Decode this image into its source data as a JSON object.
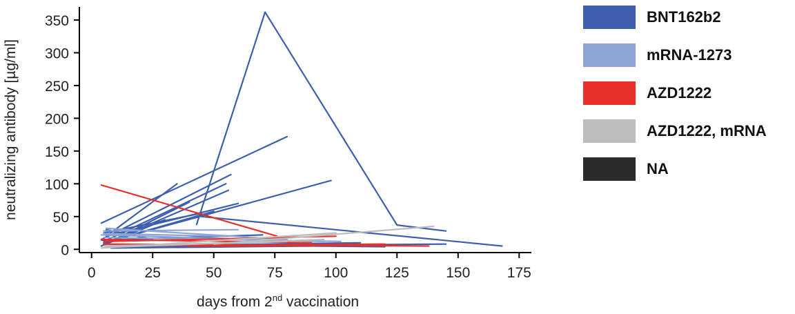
{
  "chart_data": {
    "type": "line",
    "ylabel": "neutralizing antibody [µg/ml]",
    "xlabel": {
      "prefix": "days from 2",
      "sup": "nd",
      "suffix": " vaccination"
    },
    "xlim": [
      -5,
      180
    ],
    "ylim": [
      -5,
      370
    ],
    "xticks": [
      0,
      25,
      50,
      75,
      100,
      125,
      150,
      175
    ],
    "yticks": [
      0,
      50,
      100,
      150,
      200,
      250,
      300,
      350
    ],
    "grid": false,
    "legend_position": "right",
    "legend": [
      {
        "label": "BNT162b2",
        "color": "#3d5fae"
      },
      {
        "label": "mRNA-1273",
        "color": "#8ea3d6"
      },
      {
        "label": "AZD1222",
        "color": "#e8302a"
      },
      {
        "label": "AZD1222, mRNA",
        "color": "#bdbdbd"
      },
      {
        "label": "NA",
        "color": "#2b2b2b"
      }
    ],
    "series": [
      {
        "group": "BNT162b2",
        "x": [
          43,
          71,
          125,
          145
        ],
        "y": [
          38,
          362,
          37,
          28
        ]
      },
      {
        "group": "BNT162b2",
        "x": [
          4,
          80
        ],
        "y": [
          40,
          172
        ]
      },
      {
        "group": "BNT162b2",
        "x": [
          5,
          98
        ],
        "y": [
          10,
          105
        ]
      },
      {
        "group": "BNT162b2",
        "x": [
          4,
          57
        ],
        "y": [
          15,
          114
        ]
      },
      {
        "group": "BNT162b2",
        "x": [
          5,
          55
        ],
        "y": [
          12,
          100
        ]
      },
      {
        "group": "BNT162b2",
        "x": [
          6,
          35
        ],
        "y": [
          20,
          100
        ]
      },
      {
        "group": "BNT162b2",
        "x": [
          5,
          56
        ],
        "y": [
          8,
          90
        ]
      },
      {
        "group": "BNT162b2",
        "x": [
          4,
          40
        ],
        "y": [
          5,
          72
        ]
      },
      {
        "group": "BNT162b2",
        "x": [
          5,
          50
        ],
        "y": [
          10,
          58
        ]
      },
      {
        "group": "BNT162b2",
        "x": [
          6,
          60
        ],
        "y": [
          20,
          70
        ]
      },
      {
        "group": "BNT162b2",
        "x": [
          5,
          45
        ],
        "y": [
          25,
          55
        ]
      },
      {
        "group": "BNT162b2",
        "x": [
          4,
          30
        ],
        "y": [
          5,
          45
        ]
      },
      {
        "group": "BNT162b2",
        "x": [
          45,
          168
        ],
        "y": [
          50,
          5
        ]
      },
      {
        "group": "BNT162b2",
        "x": [
          6,
          145
        ],
        "y": [
          4,
          8
        ]
      },
      {
        "group": "BNT162b2",
        "x": [
          5,
          120
        ],
        "y": [
          8,
          4
        ]
      },
      {
        "group": "BNT162b2",
        "x": [
          30,
          110
        ],
        "y": [
          6,
          10
        ]
      },
      {
        "group": "BNT162b2",
        "x": [
          8,
          90
        ],
        "y": [
          2,
          5
        ]
      },
      {
        "group": "BNT162b2",
        "x": [
          4,
          70
        ],
        "y": [
          14,
          22
        ]
      },
      {
        "group": "BNT162b2",
        "x": [
          6,
          25
        ],
        "y": [
          30,
          15
        ]
      },
      {
        "group": "mRNA-1273",
        "x": [
          5,
          60
        ],
        "y": [
          28,
          30
        ]
      },
      {
        "group": "mRNA-1273",
        "x": [
          4,
          95
        ],
        "y": [
          22,
          12
        ]
      },
      {
        "group": "mRNA-1273",
        "x": [
          6,
          80
        ],
        "y": [
          32,
          15
        ]
      },
      {
        "group": "mRNA-1273",
        "x": [
          5,
          102
        ],
        "y": [
          18,
          12
        ]
      },
      {
        "group": "mRNA-1273",
        "x": [
          5,
          55
        ],
        "y": [
          24,
          20
        ]
      },
      {
        "group": "AZD1222",
        "x": [
          4,
          76
        ],
        "y": [
          98,
          20
        ]
      },
      {
        "group": "AZD1222",
        "x": [
          5,
          100
        ],
        "y": [
          12,
          20
        ]
      },
      {
        "group": "AZD1222",
        "x": [
          5,
          138
        ],
        "y": [
          8,
          5
        ]
      },
      {
        "group": "AZD1222",
        "x": [
          6,
          120
        ],
        "y": [
          5,
          8
        ]
      },
      {
        "group": "AZD1222",
        "x": [
          40,
          125
        ],
        "y": [
          5,
          6
        ]
      },
      {
        "group": "AZD1222",
        "x": [
          4,
          90
        ],
        "y": [
          15,
          10
        ]
      },
      {
        "group": "AZD1222, mRNA",
        "x": [
          50,
          140
        ],
        "y": [
          8,
          35
        ]
      },
      {
        "group": "AZD1222, mRNA",
        "x": [
          4,
          100
        ],
        "y": [
          2,
          25
        ]
      },
      {
        "group": "AZD1222, mRNA",
        "x": [
          5,
          80
        ],
        "y": [
          5,
          12
        ]
      },
      {
        "group": "AZD1222, mRNA",
        "x": [
          6,
          95
        ],
        "y": [
          3,
          15
        ]
      }
    ]
  }
}
